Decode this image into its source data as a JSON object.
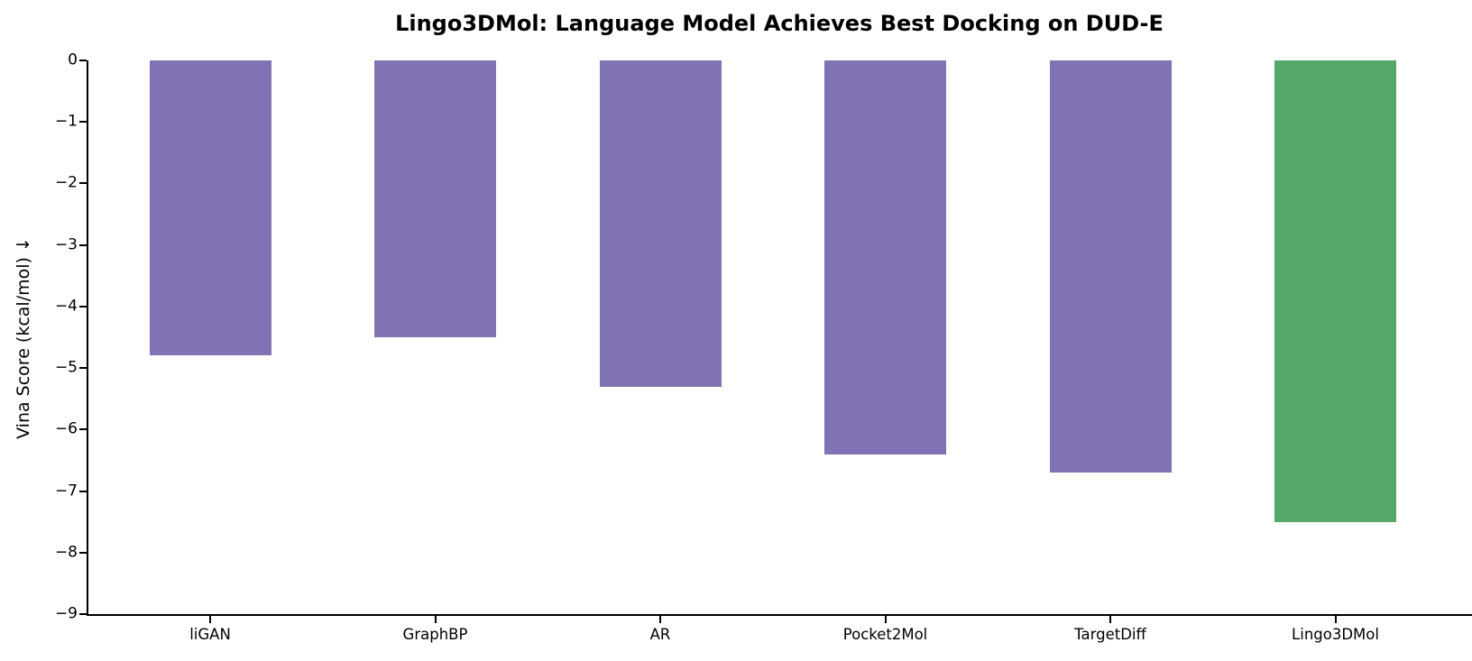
{
  "chart_data": {
    "type": "bar",
    "title": "Lingo3DMol: Language Model Achieves Best Docking on DUD-E",
    "xlabel": "",
    "ylabel": "Vina Score (kcal/mol) ↓",
    "categories": [
      "liGAN",
      "GraphBP",
      "AR",
      "Pocket2Mol",
      "TargetDiff",
      "Lingo3DMol"
    ],
    "values": [
      -4.8,
      -4.5,
      -5.3,
      -6.4,
      -6.7,
      -7.5
    ],
    "bar_colors": [
      "#8172b3",
      "#8172b3",
      "#8172b3",
      "#8172b3",
      "#8172b3",
      "#55a868"
    ],
    "default_color": "#8172b3",
    "highlight_color": "#55a868",
    "highlight_category": "Lingo3DMol",
    "ylim": [
      -9,
      0
    ],
    "yticks": [
      0,
      -1,
      -2,
      -3,
      -4,
      -5,
      -6,
      -7,
      -8,
      -9
    ],
    "ytick_labels": [
      "0",
      "−1",
      "−2",
      "−3",
      "−4",
      "−5",
      "−6",
      "−7",
      "−8",
      "−9"
    ],
    "grid": false,
    "legend": "none",
    "axis_color": "#000000",
    "background_color": "#ffffff",
    "spines": [
      "left",
      "bottom"
    ]
  }
}
